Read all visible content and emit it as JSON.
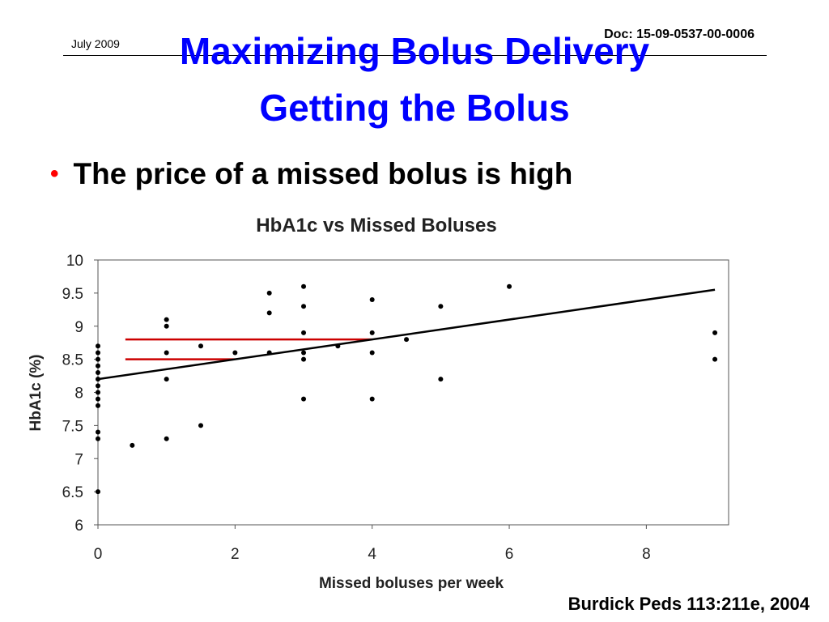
{
  "header": {
    "date": "July 2009",
    "doc_id": "Doc: 15-09-0537-00-0006"
  },
  "slide": {
    "title_line1": "Maximizing Bolus Delivery",
    "title_line2": "Getting the Bolus",
    "bullet": "The price of a missed bolus is high",
    "citation": "Burdick Peds 113:211e, 2004"
  },
  "colors": {
    "title": "#0000ff",
    "bullet_marker": "#ff0000",
    "highlight_lines": "#cc0000"
  },
  "chart_data": {
    "type": "scatter",
    "title": "HbA1c vs Missed Boluses",
    "xlabel": "Missed boluses per week",
    "ylabel": "HbA1c (%)",
    "xlim": [
      0,
      9.2
    ],
    "ylim": [
      6,
      10
    ],
    "xticks": [
      "0",
      "2",
      "4",
      "6",
      "8"
    ],
    "yticks": [
      "6",
      "6.5",
      "7",
      "7.5",
      "8",
      "8.5",
      "9",
      "9.5",
      "10"
    ],
    "grid": false,
    "legend": "none",
    "points": [
      {
        "x": 0,
        "y": 8.7
      },
      {
        "x": 0,
        "y": 8.6
      },
      {
        "x": 0,
        "y": 8.5
      },
      {
        "x": 0,
        "y": 8.4
      },
      {
        "x": 0,
        "y": 8.3
      },
      {
        "x": 0,
        "y": 8.2
      },
      {
        "x": 0,
        "y": 8.1
      },
      {
        "x": 0,
        "y": 8.0
      },
      {
        "x": 0,
        "y": 7.9
      },
      {
        "x": 0,
        "y": 7.8
      },
      {
        "x": 0,
        "y": 7.4
      },
      {
        "x": 0,
        "y": 7.3
      },
      {
        "x": 0,
        "y": 6.5
      },
      {
        "x": 0.5,
        "y": 7.2
      },
      {
        "x": 1,
        "y": 9.1
      },
      {
        "x": 1,
        "y": 9.0
      },
      {
        "x": 1,
        "y": 8.6
      },
      {
        "x": 1,
        "y": 8.2
      },
      {
        "x": 1,
        "y": 7.3
      },
      {
        "x": 1.5,
        "y": 8.7
      },
      {
        "x": 1.5,
        "y": 7.5
      },
      {
        "x": 2,
        "y": 8.6
      },
      {
        "x": 2.5,
        "y": 9.5
      },
      {
        "x": 2.5,
        "y": 9.2
      },
      {
        "x": 2.5,
        "y": 8.6
      },
      {
        "x": 3,
        "y": 9.6
      },
      {
        "x": 3,
        "y": 9.3
      },
      {
        "x": 3,
        "y": 8.9
      },
      {
        "x": 3,
        "y": 8.6
      },
      {
        "x": 3,
        "y": 8.5
      },
      {
        "x": 3,
        "y": 7.9
      },
      {
        "x": 3.5,
        "y": 8.7
      },
      {
        "x": 4,
        "y": 9.4
      },
      {
        "x": 4,
        "y": 8.9
      },
      {
        "x": 4,
        "y": 8.6
      },
      {
        "x": 4,
        "y": 7.9
      },
      {
        "x": 4.5,
        "y": 8.8
      },
      {
        "x": 5,
        "y": 9.3
      },
      {
        "x": 5,
        "y": 8.2
      },
      {
        "x": 6,
        "y": 9.6
      },
      {
        "x": 9,
        "y": 8.9
      },
      {
        "x": 9,
        "y": 8.5
      }
    ],
    "trendline": {
      "x": [
        0,
        9
      ],
      "y": [
        8.2,
        9.55
      ]
    },
    "highlights": [
      {
        "x_end": 4,
        "y": 8.8
      },
      {
        "x_end": 2,
        "y": 8.5
      }
    ]
  }
}
